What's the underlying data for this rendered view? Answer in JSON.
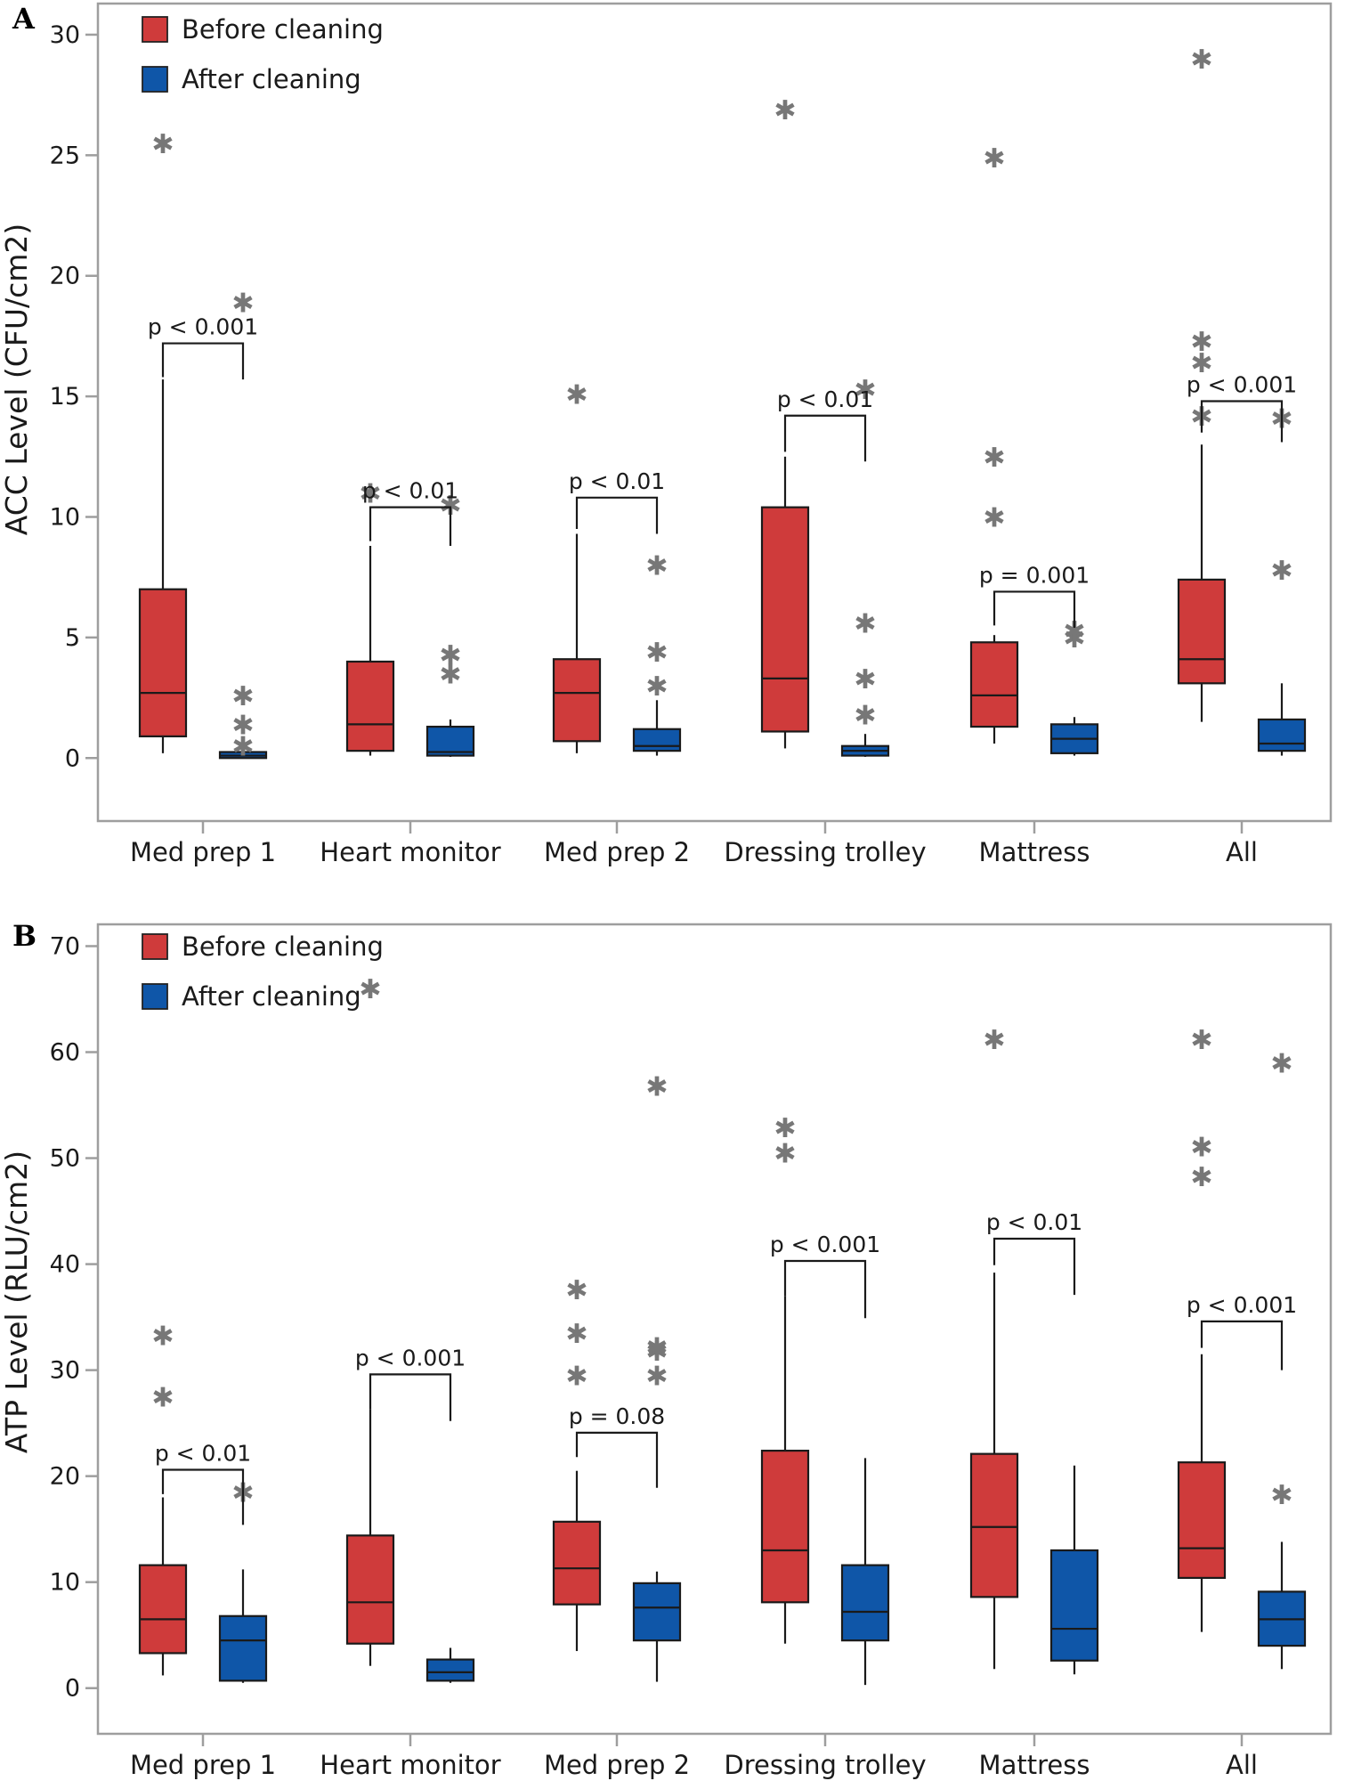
{
  "colors": {
    "before": "#cf3b3b",
    "after": "#0f56a8",
    "outlier": "#777777",
    "frame": "#9e9e9e"
  },
  "chart_data": [
    {
      "type": "boxplot",
      "panel": "A",
      "ylabel": "ACC Level (CFU/cm2)",
      "ylim": [
        -1.8,
        30.7
      ],
      "yticks": [
        0,
        5,
        10,
        15,
        20,
        25,
        30
      ],
      "categories": [
        "Med prep 1",
        "Heart monitor",
        "Med prep 2",
        "Dressing trolley",
        "Mattress",
        "All"
      ],
      "legend": [
        "Before cleaning",
        "After cleaning"
      ],
      "outlier_symbol": "✱",
      "series": [
        {
          "name": "Before cleaning",
          "boxes": [
            {
              "whislo": 0.2,
              "q1": 0.9,
              "med": 2.7,
              "q3": 7.0,
              "whishi": 15.7,
              "fliers": [
                25.5
              ]
            },
            {
              "whislo": 0.1,
              "q1": 0.3,
              "med": 1.4,
              "q3": 4.0,
              "whishi": 8.8,
              "fliers": [
                11.0
              ]
            },
            {
              "whislo": 0.2,
              "q1": 0.7,
              "med": 2.7,
              "q3": 4.1,
              "whishi": 9.3,
              "fliers": [
                15.1
              ]
            },
            {
              "whislo": 0.4,
              "q1": 1.1,
              "med": 3.3,
              "q3": 10.4,
              "whishi": 12.5,
              "fliers": [
                26.9
              ]
            },
            {
              "whislo": 0.6,
              "q1": 1.3,
              "med": 2.6,
              "q3": 4.8,
              "whishi": 5.1,
              "fliers": [
                10.0,
                12.5,
                24.9
              ]
            },
            {
              "whislo": 1.5,
              "q1": 3.1,
              "med": 4.1,
              "q3": 7.4,
              "whishi": 13.0,
              "fliers": [
                14.2,
                16.4,
                17.3,
                29.0
              ]
            }
          ]
        },
        {
          "name": "After cleaning",
          "boxes": [
            {
              "whislo": 0.0,
              "q1": 0.0,
              "med": 0.1,
              "q3": 0.25,
              "whishi": 0.3,
              "fliers": [
                0.5,
                1.4,
                2.6,
                18.9
              ]
            },
            {
              "whislo": 0.05,
              "q1": 0.1,
              "med": 0.25,
              "q3": 1.3,
              "whishi": 1.6,
              "fliers": [
                3.5,
                4.3,
                10.5
              ]
            },
            {
              "whislo": 0.1,
              "q1": 0.3,
              "med": 0.5,
              "q3": 1.2,
              "whishi": 2.4,
              "fliers": [
                3.0,
                4.4,
                8.0
              ]
            },
            {
              "whislo": 0.05,
              "q1": 0.1,
              "med": 0.3,
              "q3": 0.5,
              "whishi": 1.0,
              "fliers": [
                1.8,
                3.3,
                5.6,
                15.3
              ]
            },
            {
              "whislo": 0.1,
              "q1": 0.2,
              "med": 0.8,
              "q3": 1.4,
              "whishi": 1.7,
              "fliers": [
                5.0,
                5.3
              ]
            },
            {
              "whislo": 0.1,
              "q1": 0.3,
              "med": 0.6,
              "q3": 1.6,
              "whishi": 3.1,
              "fliers": [
                7.8,
                14.1
              ]
            }
          ]
        }
      ],
      "pvalues": [
        {
          "category": "Med prep 1",
          "label": "p < 0.001",
          "y": 17.2,
          "drop_before": 1.4,
          "drop_after": 1.5
        },
        {
          "category": "Heart monitor",
          "label": "p < 0.01",
          "y": 10.4,
          "drop_before": 1.4,
          "drop_after": 1.6
        },
        {
          "category": "Med prep 2",
          "label": "p < 0.01",
          "y": 10.8,
          "drop_before": 1.3,
          "drop_after": 1.5
        },
        {
          "category": "Dressing trolley",
          "label": "p < 0.01",
          "y": 14.2,
          "drop_before": 1.5,
          "drop_after": 1.9
        },
        {
          "category": "Mattress",
          "label": "p = 0.001",
          "y": 6.9,
          "drop_before": 1.4,
          "drop_after": 1.5
        },
        {
          "category": "All",
          "label": "p < 0.001",
          "y": 14.8,
          "drop_before": 1.3,
          "drop_after": 1.7
        }
      ]
    },
    {
      "type": "boxplot",
      "panel": "B",
      "ylabel": "ATP Level (RLU/cm2)",
      "ylim": [
        -3.3,
        71.3
      ],
      "yticks": [
        0,
        10,
        20,
        30,
        40,
        50,
        60,
        70
      ],
      "categories": [
        "Med prep 1",
        "Heart monitor",
        "Med prep 2",
        "Dressing trolley",
        "Mattress",
        "All"
      ],
      "legend": [
        "Before cleaning",
        "After cleaning"
      ],
      "outlier_symbol": "✱",
      "series": [
        {
          "name": "Before cleaning",
          "boxes": [
            {
              "whislo": 1.2,
              "q1": 3.3,
              "med": 6.5,
              "q3": 11.6,
              "whishi": 18.0,
              "fliers": [
                27.5,
                33.3
              ]
            },
            {
              "whislo": 2.1,
              "q1": 4.2,
              "med": 8.1,
              "q3": 14.4,
              "whishi": 26.3,
              "fliers": [
                66.0
              ]
            },
            {
              "whislo": 3.5,
              "q1": 7.9,
              "med": 11.3,
              "q3": 15.7,
              "whishi": 20.5,
              "fliers": [
                29.5,
                33.5,
                37.6
              ]
            },
            {
              "whislo": 4.2,
              "q1": 8.1,
              "med": 13.0,
              "q3": 22.4,
              "whishi": 37.0,
              "fliers": [
                50.5,
                52.9
              ]
            },
            {
              "whislo": 1.8,
              "q1": 8.6,
              "med": 15.2,
              "q3": 22.1,
              "whishi": 39.2,
              "fliers": [
                61.2
              ]
            },
            {
              "whislo": 5.3,
              "q1": 10.4,
              "med": 13.2,
              "q3": 21.3,
              "whishi": 31.5,
              "fliers": [
                48.3,
                51.1,
                61.2
              ]
            }
          ]
        },
        {
          "name": "After cleaning",
          "boxes": [
            {
              "whislo": 0.5,
              "q1": 0.7,
              "med": 4.5,
              "q3": 6.8,
              "whishi": 11.2,
              "fliers": [
                18.5
              ]
            },
            {
              "whislo": 0.5,
              "q1": 0.7,
              "med": 1.5,
              "q3": 2.7,
              "whishi": 3.8,
              "fliers": []
            },
            {
              "whislo": 0.6,
              "q1": 4.5,
              "med": 7.6,
              "q3": 9.9,
              "whishi": 11.0,
              "fliers": [
                29.5,
                31.8,
                32.2,
                56.8
              ]
            },
            {
              "whislo": 0.3,
              "q1": 4.5,
              "med": 7.2,
              "q3": 11.6,
              "whishi": 21.7,
              "fliers": []
            },
            {
              "whislo": 1.3,
              "q1": 2.6,
              "med": 5.6,
              "q3": 13.0,
              "whishi": 21.0,
              "fliers": []
            },
            {
              "whislo": 1.8,
              "q1": 4.0,
              "med": 6.5,
              "q3": 9.1,
              "whishi": 13.8,
              "fliers": [
                18.3,
                59.0
              ]
            }
          ]
        }
      ],
      "pvalues": [
        {
          "category": "Med prep 1",
          "label": "p < 0.01",
          "y": 20.6,
          "drop_before": 2.3,
          "drop_after": 5.2
        },
        {
          "category": "Heart monitor",
          "label": "p < 0.001",
          "y": 29.6,
          "drop_before": 3.3,
          "drop_after": 4.4
        },
        {
          "category": "Med prep 2",
          "label": "p = 0.08",
          "y": 24.1,
          "drop_before": 2.3,
          "drop_after": 5.2
        },
        {
          "category": "Dressing trolley",
          "label": "p < 0.001",
          "y": 40.3,
          "drop_before": 3.3,
          "drop_after": 5.4
        },
        {
          "category": "Mattress",
          "label": "p < 0.01",
          "y": 42.4,
          "drop_before": 2.5,
          "drop_after": 5.3
        },
        {
          "category": "All",
          "label": "p < 0.001",
          "y": 34.6,
          "drop_before": 2.5,
          "drop_after": 4.6
        }
      ]
    }
  ]
}
